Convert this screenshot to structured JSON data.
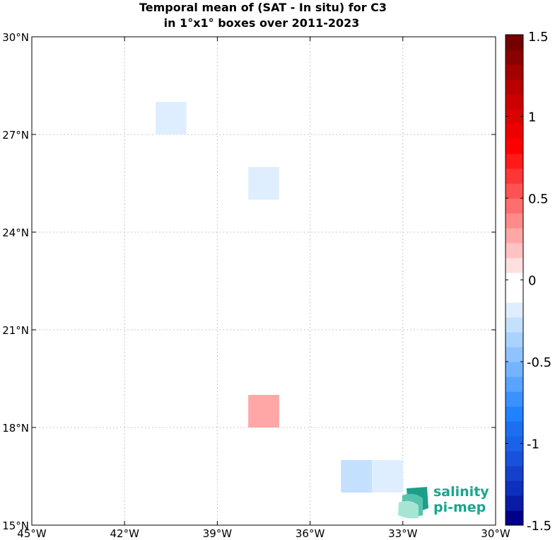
{
  "chart_data": {
    "type": "heatmap",
    "title": "Temporal mean of (SAT - In situ) for C3",
    "subtitle": "in 1°x1° boxes over 2011-2023",
    "xlim": [
      -45,
      -30
    ],
    "ylim": [
      15,
      30
    ],
    "grid": true,
    "x_ticks": [
      {
        "value": -45,
        "label": "45°W"
      },
      {
        "value": -42,
        "label": "42°W"
      },
      {
        "value": -39,
        "label": "39°W"
      },
      {
        "value": -36,
        "label": "36°W"
      },
      {
        "value": -33,
        "label": "33°W"
      },
      {
        "value": -30,
        "label": "30°W"
      }
    ],
    "y_ticks": [
      {
        "value": 15,
        "label": "15°N"
      },
      {
        "value": 18,
        "label": "18°N"
      },
      {
        "value": 21,
        "label": "21°N"
      },
      {
        "value": 24,
        "label": "24°N"
      },
      {
        "value": 27,
        "label": "27°N"
      },
      {
        "value": 30,
        "label": "30°N"
      }
    ],
    "cells": [
      {
        "lon": [
          -41,
          -40
        ],
        "lat": [
          27,
          28
        ],
        "value": -0.15
      },
      {
        "lon": [
          -38,
          -37
        ],
        "lat": [
          25,
          26
        ],
        "value": -0.15
      },
      {
        "lon": [
          -38,
          -37
        ],
        "lat": [
          18,
          19
        ],
        "value": 0.3
      },
      {
        "lon": [
          -35,
          -34
        ],
        "lat": [
          16,
          17
        ],
        "value": -0.3
      },
      {
        "lon": [
          -34,
          -33
        ],
        "lat": [
          16,
          17
        ],
        "value": -0.15
      }
    ],
    "colorbar": {
      "range": [
        -1.5,
        1.5
      ],
      "ticks": [
        {
          "value": 1.5,
          "label": "1.5"
        },
        {
          "value": 1,
          "label": "1"
        },
        {
          "value": 0.5,
          "label": "0.5"
        },
        {
          "value": 0,
          "label": "0"
        },
        {
          "value": -0.5,
          "label": "-0.5"
        },
        {
          "value": -1,
          "label": "-1"
        },
        {
          "value": -1.5,
          "label": "-1.5"
        }
      ],
      "colors": [
        "#00008a",
        "#0a1ca6",
        "#0e2ebd",
        "#1440cc",
        "#1852dc",
        "#1a62e8",
        "#1c70f0",
        "#2182ff",
        "#3a92ff",
        "#58a4ff",
        "#74b4ff",
        "#8fc3ff",
        "#aad2ff",
        "#c4e0ff",
        "#dfeeff",
        "#ffffff",
        "#ffffff",
        "#ffdfdf",
        "#ffc2c2",
        "#ffa6a6",
        "#ff8a8a",
        "#ff6e6e",
        "#ff5252",
        "#ff3636",
        "#ff1a1a",
        "#ff0000",
        "#ee0000",
        "#dd0000",
        "#cc0000",
        "#b80000",
        "#a40000",
        "#8a0000",
        "#750000"
      ]
    }
  },
  "logo": {
    "line1": "salinity",
    "line2": "pi-mep"
  }
}
